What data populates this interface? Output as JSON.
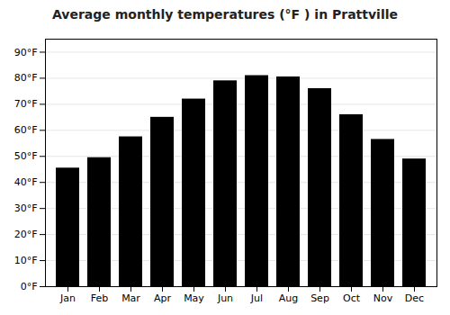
{
  "chart_data": {
    "type": "bar",
    "title": "Average monthly temperatures (°F ) in Prattville",
    "categories": [
      "Jan",
      "Feb",
      "Mar",
      "Apr",
      "May",
      "Jun",
      "Jul",
      "Aug",
      "Sep",
      "Oct",
      "Nov",
      "Dec"
    ],
    "values": [
      45.5,
      49.5,
      57.5,
      65,
      72,
      79,
      81,
      80.5,
      76,
      66,
      56.5,
      49
    ],
    "ylim": [
      0,
      95
    ],
    "yticks": [
      {
        "value": 0,
        "label": "0°F"
      },
      {
        "value": 10,
        "label": "10°F"
      },
      {
        "value": 20,
        "label": "20°F"
      },
      {
        "value": 30,
        "label": "30°F"
      },
      {
        "value": 40,
        "label": "40°F"
      },
      {
        "value": 50,
        "label": "50°F"
      },
      {
        "value": 60,
        "label": "60°F"
      },
      {
        "value": 70,
        "label": "70°F"
      },
      {
        "value": 80,
        "label": "80°F"
      },
      {
        "value": 90,
        "label": "90°F"
      }
    ],
    "grid": true
  }
}
